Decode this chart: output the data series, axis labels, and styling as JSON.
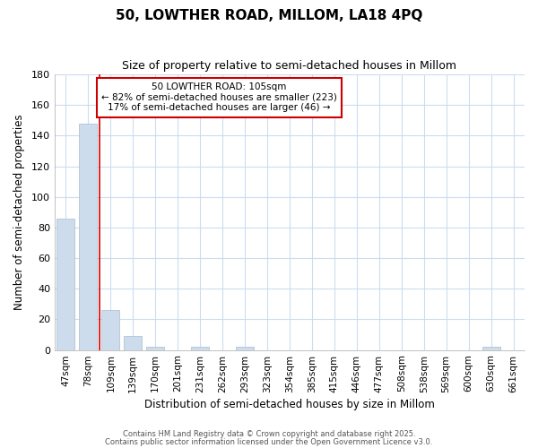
{
  "title1": "50, LOWTHER ROAD, MILLOM, LA18 4PQ",
  "title2": "Size of property relative to semi-detached houses in Millom",
  "xlabel": "Distribution of semi-detached houses by size in Millom",
  "ylabel": "Number of semi-detached properties",
  "categories": [
    "47sqm",
    "78sqm",
    "109sqm",
    "139sqm",
    "170sqm",
    "201sqm",
    "231sqm",
    "262sqm",
    "293sqm",
    "323sqm",
    "354sqm",
    "385sqm",
    "415sqm",
    "446sqm",
    "477sqm",
    "508sqm",
    "538sqm",
    "569sqm",
    "600sqm",
    "630sqm",
    "661sqm"
  ],
  "values": [
    86,
    148,
    26,
    9,
    2,
    0,
    2,
    0,
    2,
    0,
    0,
    0,
    0,
    0,
    0,
    0,
    0,
    0,
    0,
    2,
    0
  ],
  "bar_color": "#ccdcec",
  "bar_edgecolor": "#aabccc",
  "property_line_index": 1.5,
  "annotation_line1": "50 LOWTHER ROAD: 105sqm",
  "annotation_line2": "← 82% of semi-detached houses are smaller (223)",
  "annotation_line3": "17% of semi-detached houses are larger (46) →",
  "vline_color": "#cc0000",
  "annotation_box_edgecolor": "#cc0000",
  "background_color": "#ffffff",
  "grid_color": "#ccdcf0",
  "footer1": "Contains HM Land Registry data © Crown copyright and database right 2025.",
  "footer2": "Contains public sector information licensed under the Open Government Licence v3.0.",
  "ylim": [
    0,
    180
  ],
  "yticks": [
    0,
    20,
    40,
    60,
    80,
    100,
    120,
    140,
    160,
    180
  ]
}
